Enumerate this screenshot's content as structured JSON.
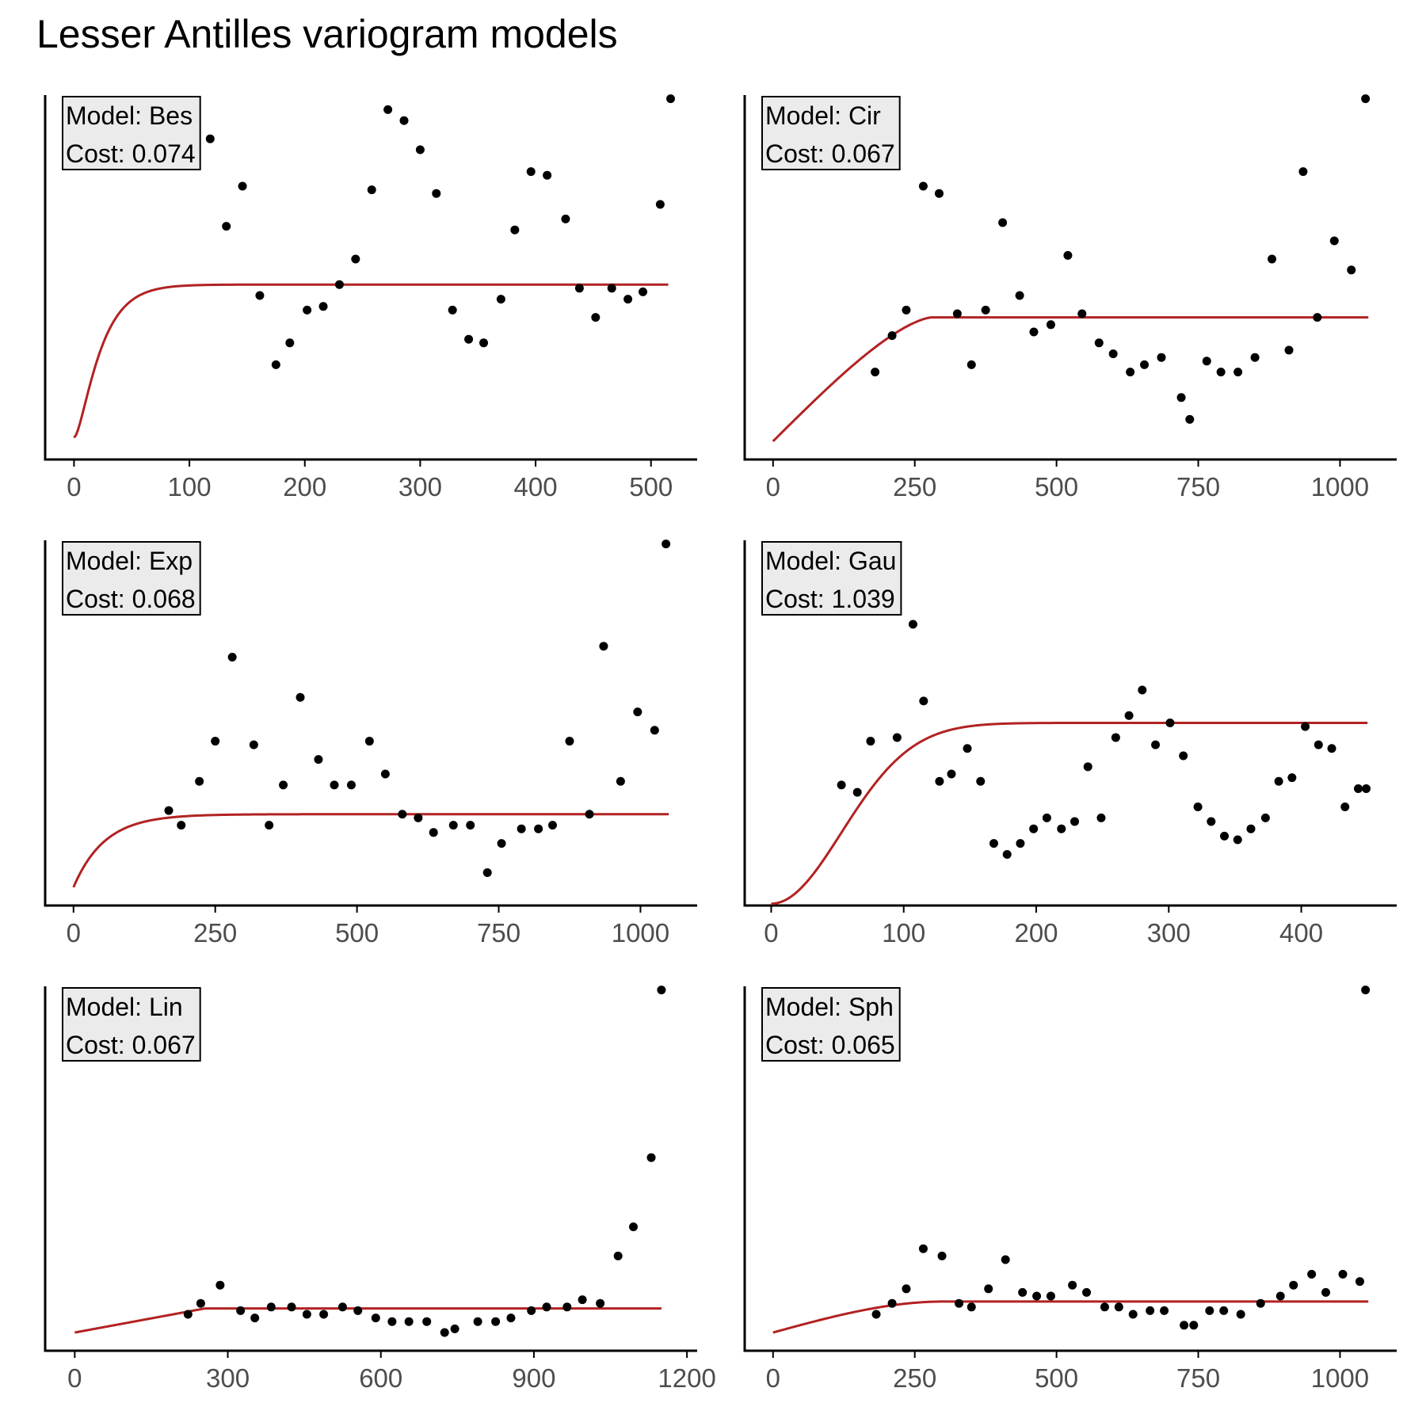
{
  "title": "Lesser Antilles variogram models",
  "colors": {
    "model_line": "#b22222",
    "points": "#000000",
    "label_box": "#ebebeb",
    "axis": "#000000"
  },
  "chart_data": [
    {
      "type": "scatter",
      "model": "Bes",
      "label_model": "Model: Bes",
      "label_cost": "Cost: 0.074",
      "xlim": [
        -25,
        540
      ],
      "ylim": [
        0,
        1
      ],
      "xticks": [
        0,
        100,
        200,
        300,
        400,
        500
      ],
      "xtick_labels": [
        "0",
        "100",
        "200",
        "300",
        "400",
        "500"
      ],
      "curve": {
        "kind": "bessel",
        "range": 15.7,
        "nugget": 0.06,
        "sill": 0.42,
        "x_end": 515
      },
      "points": [
        [
          118,
          0.88
        ],
        [
          132,
          0.64
        ],
        [
          146,
          0.75
        ],
        [
          161,
          0.45
        ],
        [
          175,
          0.26
        ],
        [
          187,
          0.32
        ],
        [
          202,
          0.41
        ],
        [
          216,
          0.42
        ],
        [
          230,
          0.48
        ],
        [
          244,
          0.55
        ],
        [
          258,
          0.74
        ],
        [
          272,
          0.96
        ],
        [
          286,
          0.93
        ],
        [
          300,
          0.85
        ],
        [
          314,
          0.73
        ],
        [
          328,
          0.41
        ],
        [
          342,
          0.33
        ],
        [
          355,
          0.32
        ],
        [
          370,
          0.44
        ],
        [
          382,
          0.63
        ],
        [
          396,
          0.79
        ],
        [
          410,
          0.78
        ],
        [
          426,
          0.66
        ],
        [
          438,
          0.47
        ],
        [
          452,
          0.39
        ],
        [
          466,
          0.47
        ],
        [
          480,
          0.44
        ],
        [
          493,
          0.46
        ],
        [
          508,
          0.7
        ],
        [
          517,
          0.99
        ]
      ]
    },
    {
      "type": "scatter",
      "model": "Cir",
      "label_model": "Model: Cir",
      "label_cost": "Cost: 0.067",
      "xlim": [
        -50,
        1100
      ],
      "ylim": [
        0,
        1
      ],
      "xticks": [
        0,
        250,
        500,
        750,
        1000
      ],
      "xtick_labels": [
        "0",
        "250",
        "500",
        "750",
        "1000"
      ],
      "curve": {
        "kind": "circular",
        "range": 280,
        "nugget": 0.05,
        "sill": 0.34,
        "x_end": 1050
      },
      "points": [
        [
          180,
          0.24
        ],
        [
          210,
          0.34
        ],
        [
          235,
          0.41
        ],
        [
          265,
          0.75
        ],
        [
          293,
          0.73
        ],
        [
          325,
          0.4
        ],
        [
          350,
          0.26
        ],
        [
          375,
          0.41
        ],
        [
          405,
          0.65
        ],
        [
          435,
          0.45
        ],
        [
          460,
          0.35
        ],
        [
          490,
          0.37
        ],
        [
          520,
          0.56
        ],
        [
          545,
          0.4
        ],
        [
          575,
          0.32
        ],
        [
          600,
          0.29
        ],
        [
          630,
          0.24
        ],
        [
          655,
          0.26
        ],
        [
          685,
          0.28
        ],
        [
          720,
          0.17
        ],
        [
          735,
          0.11
        ],
        [
          765,
          0.27
        ],
        [
          790,
          0.24
        ],
        [
          820,
          0.24
        ],
        [
          850,
          0.28
        ],
        [
          880,
          0.55
        ],
        [
          910,
          0.3
        ],
        [
          935,
          0.79
        ],
        [
          960,
          0.39
        ],
        [
          990,
          0.6
        ],
        [
          1020,
          0.52
        ],
        [
          1045,
          0.99
        ]
      ]
    },
    {
      "type": "scatter",
      "model": "Exp",
      "label_model": "Model: Exp",
      "label_cost": "Cost: 0.068",
      "xlim": [
        -50,
        1100
      ],
      "ylim": [
        0,
        1
      ],
      "xticks": [
        0,
        250,
        500,
        750,
        1000
      ],
      "xtick_labels": [
        "0",
        "250",
        "500",
        "750",
        "1000"
      ],
      "curve": {
        "kind": "exponential",
        "range": 55,
        "nugget": 0.05,
        "sill": 0.2,
        "x_end": 1050
      },
      "points": [
        [
          168,
          0.26
        ],
        [
          190,
          0.22
        ],
        [
          222,
          0.34
        ],
        [
          250,
          0.45
        ],
        [
          280,
          0.68
        ],
        [
          318,
          0.44
        ],
        [
          345,
          0.22
        ],
        [
          370,
          0.33
        ],
        [
          400,
          0.57
        ],
        [
          432,
          0.4
        ],
        [
          460,
          0.33
        ],
        [
          490,
          0.33
        ],
        [
          522,
          0.45
        ],
        [
          550,
          0.36
        ],
        [
          580,
          0.25
        ],
        [
          608,
          0.24
        ],
        [
          635,
          0.2
        ],
        [
          670,
          0.22
        ],
        [
          700,
          0.22
        ],
        [
          730,
          0.09
        ],
        [
          755,
          0.17
        ],
        [
          790,
          0.21
        ],
        [
          820,
          0.21
        ],
        [
          845,
          0.22
        ],
        [
          875,
          0.45
        ],
        [
          910,
          0.25
        ],
        [
          935,
          0.71
        ],
        [
          965,
          0.34
        ],
        [
          995,
          0.53
        ],
        [
          1025,
          0.48
        ],
        [
          1045,
          0.99
        ]
      ]
    },
    {
      "type": "scatter",
      "model": "Gau",
      "label_model": "Model: Gau",
      "label_cost": "Cost: 1.039",
      "xlim": [
        -20,
        472
      ],
      "ylim": [
        0,
        1
      ],
      "xticks": [
        0,
        100,
        200,
        300,
        400
      ],
      "xtick_labels": [
        "0",
        "100",
        "200",
        "300",
        "400"
      ],
      "curve": {
        "kind": "gaussian",
        "range": 75,
        "nugget": 0.005,
        "sill": 0.495,
        "x_end": 450
      },
      "points": [
        [
          53,
          0.33
        ],
        [
          65,
          0.31
        ],
        [
          75,
          0.45
        ],
        [
          95,
          0.46
        ],
        [
          107,
          0.77
        ],
        [
          115,
          0.56
        ],
        [
          127,
          0.34
        ],
        [
          136,
          0.36
        ],
        [
          148,
          0.43
        ],
        [
          158,
          0.34
        ],
        [
          168,
          0.17
        ],
        [
          178,
          0.14
        ],
        [
          188,
          0.17
        ],
        [
          198,
          0.21
        ],
        [
          208,
          0.24
        ],
        [
          219,
          0.21
        ],
        [
          229,
          0.23
        ],
        [
          239,
          0.38
        ],
        [
          249,
          0.24
        ],
        [
          260,
          0.46
        ],
        [
          270,
          0.52
        ],
        [
          280,
          0.59
        ],
        [
          290,
          0.44
        ],
        [
          301,
          0.5
        ],
        [
          311,
          0.41
        ],
        [
          322,
          0.27
        ],
        [
          332,
          0.23
        ],
        [
          342,
          0.19
        ],
        [
          352,
          0.18
        ],
        [
          362,
          0.21
        ],
        [
          373,
          0.24
        ],
        [
          383,
          0.34
        ],
        [
          393,
          0.35
        ],
        [
          403,
          0.49
        ],
        [
          413,
          0.44
        ],
        [
          423,
          0.43
        ],
        [
          433,
          0.27
        ],
        [
          443,
          0.32
        ],
        [
          449,
          0.32
        ]
      ]
    },
    {
      "type": "scatter",
      "model": "Lin",
      "label_model": "Model: Lin",
      "label_cost": "Cost: 0.067",
      "xlim": [
        -58,
        1220
      ],
      "ylim": [
        0,
        1
      ],
      "xticks": [
        0,
        300,
        600,
        900,
        1200
      ],
      "xtick_labels": [
        "0",
        "300",
        "600",
        "900",
        "1200"
      ],
      "curve": {
        "kind": "linear",
        "range": 255,
        "nugget": 0.05,
        "sill": 0.066,
        "x_end": 1150
      },
      "points": [
        [
          222,
          0.1
        ],
        [
          247,
          0.13
        ],
        [
          285,
          0.18
        ],
        [
          325,
          0.11
        ],
        [
          353,
          0.09
        ],
        [
          385,
          0.12
        ],
        [
          425,
          0.12
        ],
        [
          455,
          0.1
        ],
        [
          488,
          0.1
        ],
        [
          525,
          0.12
        ],
        [
          555,
          0.11
        ],
        [
          590,
          0.09
        ],
        [
          622,
          0.08
        ],
        [
          655,
          0.08
        ],
        [
          690,
          0.08
        ],
        [
          725,
          0.05
        ],
        [
          745,
          0.06
        ],
        [
          790,
          0.08
        ],
        [
          825,
          0.08
        ],
        [
          855,
          0.09
        ],
        [
          895,
          0.11
        ],
        [
          925,
          0.12
        ],
        [
          965,
          0.12
        ],
        [
          995,
          0.14
        ],
        [
          1030,
          0.13
        ],
        [
          1065,
          0.26
        ],
        [
          1095,
          0.34
        ],
        [
          1130,
          0.53
        ],
        [
          1150,
          0.99
        ]
      ]
    },
    {
      "type": "scatter",
      "model": "Sph",
      "label_model": "Model: Sph",
      "label_cost": "Cost: 0.065",
      "xlim": [
        -50,
        1100
      ],
      "ylim": [
        0,
        1
      ],
      "xticks": [
        0,
        250,
        500,
        750,
        1000
      ],
      "xtick_labels": [
        "0",
        "250",
        "500",
        "750",
        "1000"
      ],
      "curve": {
        "kind": "spherical",
        "range": 300,
        "nugget": 0.05,
        "sill": 0.085,
        "x_end": 1050
      },
      "points": [
        [
          182,
          0.1
        ],
        [
          210,
          0.13
        ],
        [
          235,
          0.17
        ],
        [
          265,
          0.28
        ],
        [
          298,
          0.26
        ],
        [
          328,
          0.13
        ],
        [
          350,
          0.12
        ],
        [
          380,
          0.17
        ],
        [
          410,
          0.25
        ],
        [
          440,
          0.16
        ],
        [
          465,
          0.15
        ],
        [
          490,
          0.15
        ],
        [
          528,
          0.18
        ],
        [
          553,
          0.16
        ],
        [
          585,
          0.12
        ],
        [
          610,
          0.12
        ],
        [
          635,
          0.1
        ],
        [
          665,
          0.11
        ],
        [
          690,
          0.11
        ],
        [
          725,
          0.07
        ],
        [
          742,
          0.07
        ],
        [
          770,
          0.11
        ],
        [
          795,
          0.11
        ],
        [
          825,
          0.1
        ],
        [
          860,
          0.13
        ],
        [
          895,
          0.15
        ],
        [
          918,
          0.18
        ],
        [
          950,
          0.21
        ],
        [
          975,
          0.16
        ],
        [
          1005,
          0.21
        ],
        [
          1035,
          0.19
        ],
        [
          1045,
          0.99
        ]
      ]
    }
  ]
}
